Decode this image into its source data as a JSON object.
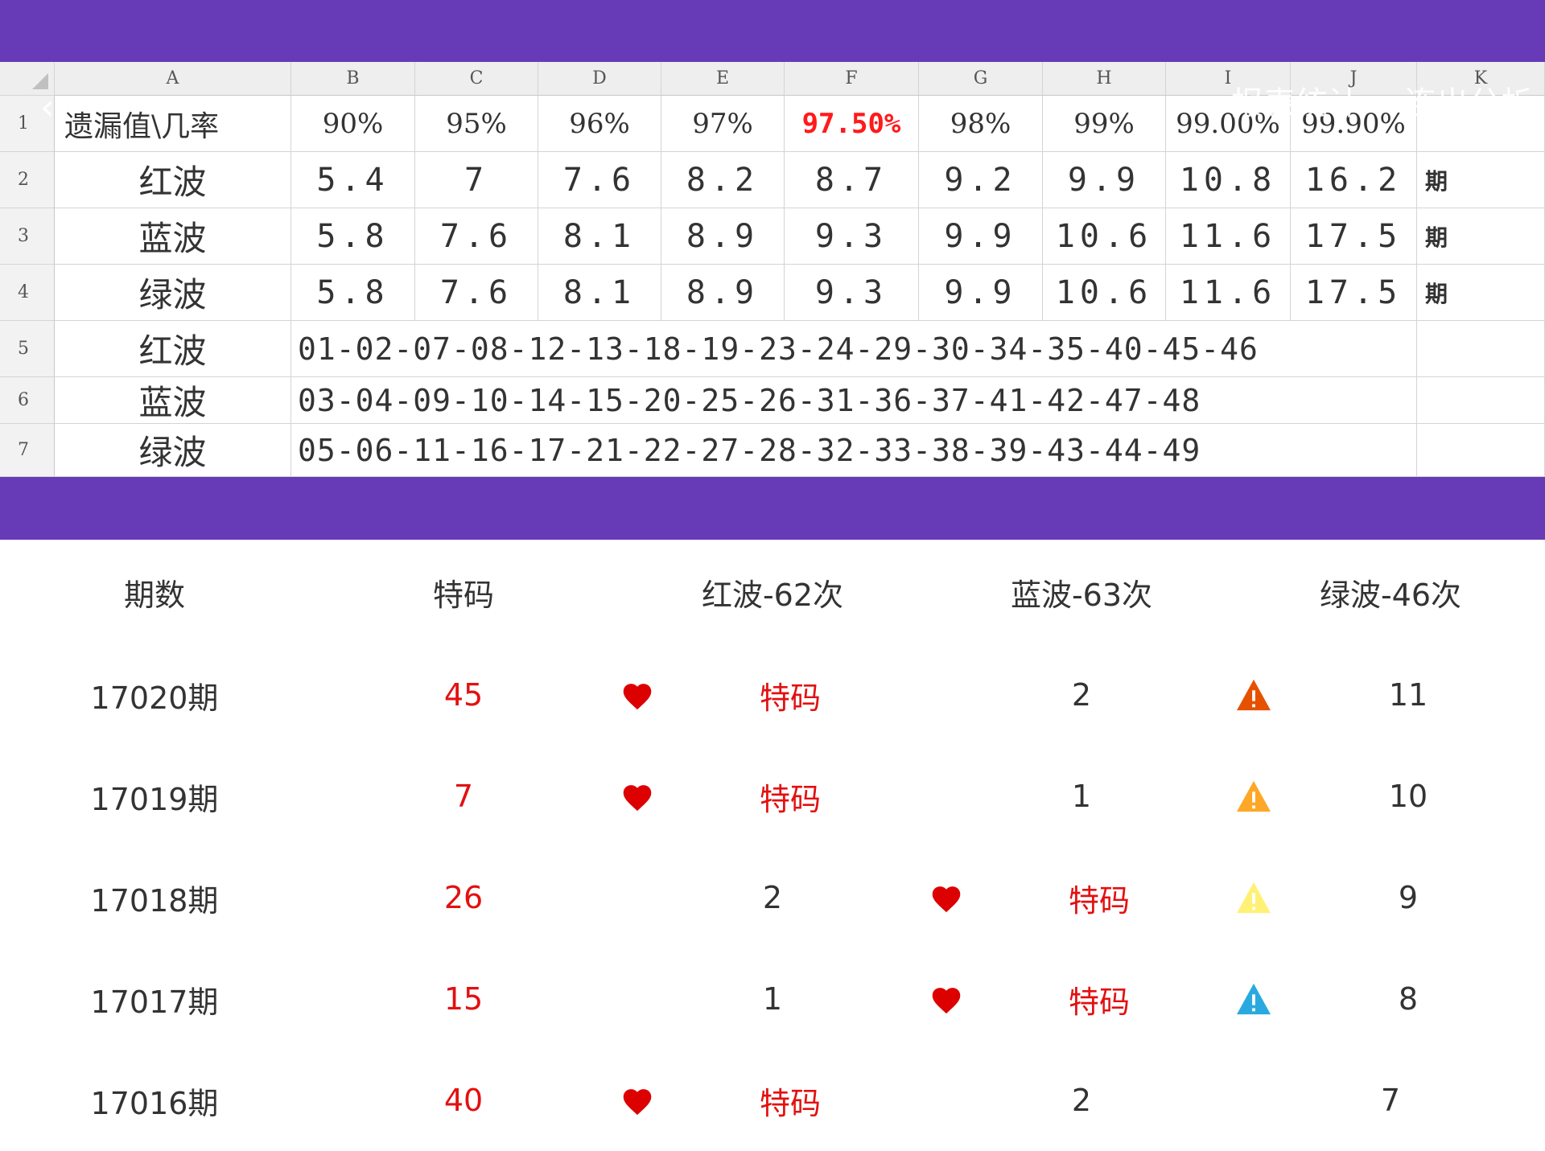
{
  "sheet": {
    "col_headers": [
      "A",
      "B",
      "C",
      "D",
      "E",
      "F",
      "G",
      "H",
      "I",
      "J",
      "K"
    ],
    "row_headers": [
      "1",
      "2",
      "3",
      "4",
      "5",
      "6",
      "7"
    ],
    "row1_label": "遗漏值\\几率",
    "percentages": [
      "90%",
      "95%",
      "96%",
      "97%",
      "97.50%",
      "98%",
      "99%",
      "99.00%",
      "99.90%"
    ],
    "highlight_color": "#ff1a1a",
    "rows": [
      {
        "label": "红波",
        "values": [
          "5.4",
          "7",
          "7.6",
          "8.2",
          "8.7",
          "9.2",
          "9.9",
          "10.8",
          "16.2"
        ],
        "unit": "期"
      },
      {
        "label": "蓝波",
        "values": [
          "5.8",
          "7.6",
          "8.1",
          "8.9",
          "9.3",
          "9.9",
          "10.6",
          "11.6",
          "17.5"
        ],
        "unit": "期"
      },
      {
        "label": "绿波",
        "values": [
          "5.8",
          "7.6",
          "8.1",
          "8.9",
          "9.3",
          "9.9",
          "10.6",
          "11.6",
          "17.5"
        ],
        "unit": "期"
      }
    ],
    "number_rows": [
      {
        "label": "红波",
        "numbers": "01-02-07-08-12-13-18-19-23-24-29-30-34-35-40-45-46"
      },
      {
        "label": "蓝波",
        "numbers": "03-04-09-10-14-15-20-25-26-31-36-37-41-42-47-48"
      },
      {
        "label": "绿波",
        "numbers": "05-06-11-16-17-21-22-27-28-32-33-38-39-43-44-49"
      }
    ]
  },
  "overlay": {
    "back_icon": "back-arrow-icon",
    "tab_left": "报表统计",
    "tab_right": "连出分析"
  },
  "table": {
    "headers": [
      "期数",
      "特码",
      "红波-62次",
      "蓝波-63次",
      "绿波-46次"
    ],
    "rows": [
      {
        "period": "17020期",
        "code": "45",
        "red": "特码",
        "red_hit": true,
        "blue": "2",
        "blue_hit": false,
        "green": "11",
        "warn": "#e65100"
      },
      {
        "period": "17019期",
        "code": "7",
        "red": "特码",
        "red_hit": true,
        "blue": "1",
        "blue_hit": false,
        "green": "10",
        "warn": "#ffa726"
      },
      {
        "period": "17018期",
        "code": "26",
        "red": "2",
        "red_hit": false,
        "blue": "特码",
        "blue_hit": true,
        "green": "9",
        "warn": "#fff176"
      },
      {
        "period": "17017期",
        "code": "15",
        "red": "1",
        "red_hit": false,
        "blue": "特码",
        "blue_hit": true,
        "green": "8",
        "warn": "#29a9e0"
      },
      {
        "period": "17016期",
        "code": "40",
        "red": "特码",
        "red_hit": true,
        "blue": "2",
        "blue_hit": false,
        "green": "7",
        "warn": null
      }
    ],
    "hit_icon": "heart-icon",
    "warn_icon": "warning-triangle-icon",
    "code_color": "#e31010"
  }
}
